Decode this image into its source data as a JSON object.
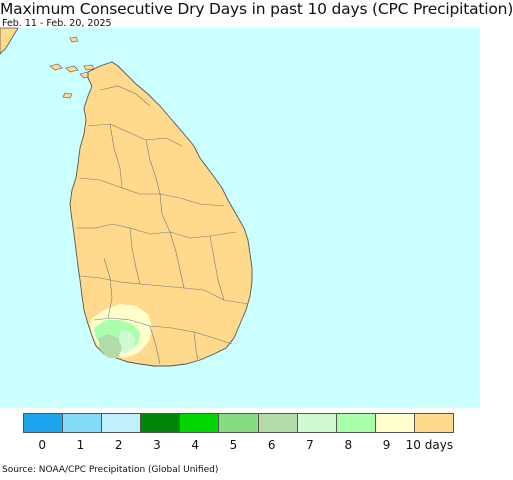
{
  "header": {
    "title": "Maximum Consecutive Dry Days in past 10 days (CPC Precipitation)",
    "date_range": "Feb. 11 - Feb. 20, 2025"
  },
  "map": {
    "ocean_color": "#ccffff",
    "land_color": "#ffd98c",
    "border_color": "#777777"
  },
  "legend": {
    "items": [
      {
        "label": "0",
        "color": "#1ea5f0"
      },
      {
        "label": "1",
        "color": "#82dcfa"
      },
      {
        "label": "2",
        "color": "#c0f0fc"
      },
      {
        "label": "3",
        "color": "#00870a"
      },
      {
        "label": "4",
        "color": "#00d700"
      },
      {
        "label": "5",
        "color": "#87dc82"
      },
      {
        "label": "6",
        "color": "#b4dcaa"
      },
      {
        "label": "7",
        "color": "#d2fad2"
      },
      {
        "label": "8",
        "color": "#aaffaa"
      },
      {
        "label": "9",
        "color": "#ffffcd"
      },
      {
        "label": "10 days",
        "color": "#ffd98c"
      }
    ]
  },
  "footer": {
    "source": "Source: NOAA/CPC Precipitation (Global Unified)"
  }
}
